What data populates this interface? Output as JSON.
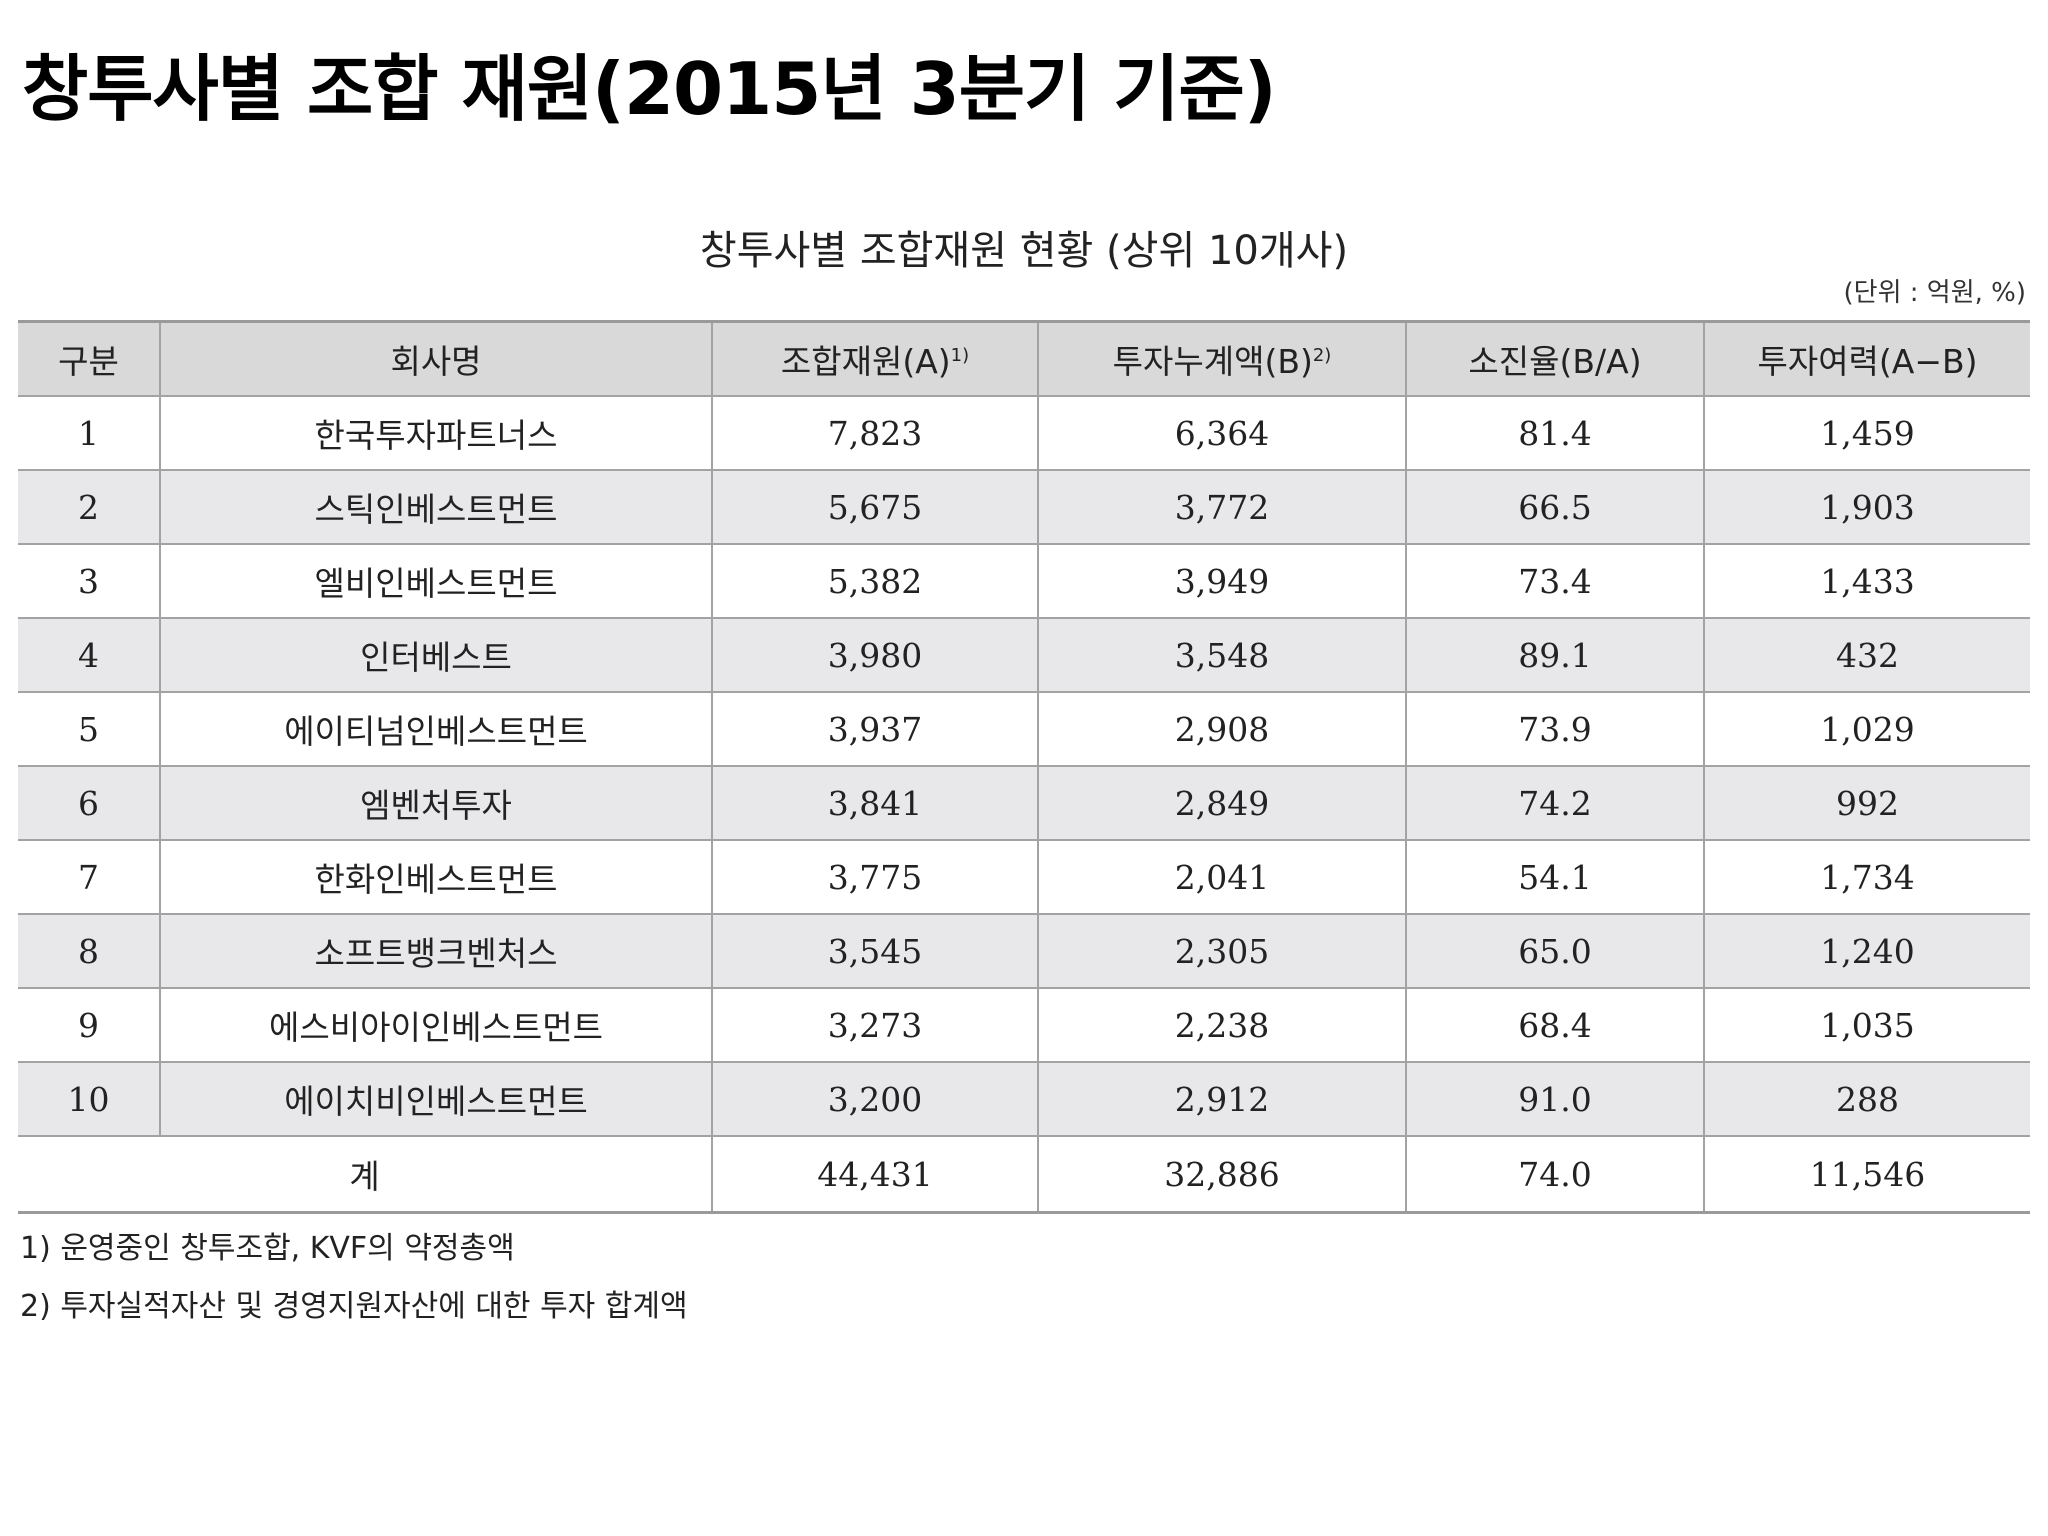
{
  "slide_title": "창투사별 조합 재원(2015년 3분기 기준)",
  "table_title": "창투사별 조합재원 현황 (상위 10개사)",
  "unit_note": "(단위 : 억원, %)",
  "headers": {
    "no": "구분",
    "company": "회사명",
    "fund": "조합재원(A)",
    "fund_sup": "1)",
    "invest": "투자누계액(B)",
    "invest_sup": "2)",
    "burn": "소진율(B/A)",
    "capacity": "투자여력(A−B)"
  },
  "rows": [
    {
      "no": "1",
      "company": "한국투자파트너스",
      "fund": "7,823",
      "invest": "6,364",
      "burn": "81.4",
      "capacity": "1,459"
    },
    {
      "no": "2",
      "company": "스틱인베스트먼트",
      "fund": "5,675",
      "invest": "3,772",
      "burn": "66.5",
      "capacity": "1,903"
    },
    {
      "no": "3",
      "company": "엘비인베스트먼트",
      "fund": "5,382",
      "invest": "3,949",
      "burn": "73.4",
      "capacity": "1,433"
    },
    {
      "no": "4",
      "company": "인터베스트",
      "fund": "3,980",
      "invest": "3,548",
      "burn": "89.1",
      "capacity": "432"
    },
    {
      "no": "5",
      "company": "에이티넘인베스트먼트",
      "fund": "3,937",
      "invest": "2,908",
      "burn": "73.9",
      "capacity": "1,029"
    },
    {
      "no": "6",
      "company": "엠벤처투자",
      "fund": "3,841",
      "invest": "2,849",
      "burn": "74.2",
      "capacity": "992"
    },
    {
      "no": "7",
      "company": "한화인베스트먼트",
      "fund": "3,775",
      "invest": "2,041",
      "burn": "54.1",
      "capacity": "1,734"
    },
    {
      "no": "8",
      "company": "소프트뱅크벤처스",
      "fund": "3,545",
      "invest": "2,305",
      "burn": "65.0",
      "capacity": "1,240"
    },
    {
      "no": "9",
      "company": "에스비아이인베스트먼트",
      "fund": "3,273",
      "invest": "2,238",
      "burn": "68.4",
      "capacity": "1,035"
    },
    {
      "no": "10",
      "company": "에이치비인베스트먼트",
      "fund": "3,200",
      "invest": "2,912",
      "burn": "91.0",
      "capacity": "288"
    }
  ],
  "total": {
    "label": "계",
    "fund": "44,431",
    "invest": "32,886",
    "burn": "74.0",
    "capacity": "11,546"
  },
  "footnotes": [
    "1) 운영중인 창투조합, KVF의 약정총액",
    "2) 투자실적자산 및 경영지원자산에 대한 투자 합계액"
  ]
}
